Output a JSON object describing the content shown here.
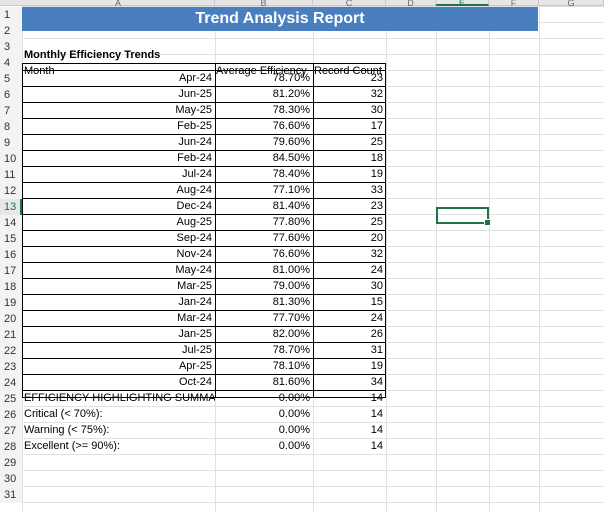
{
  "columns": [
    "A",
    "B",
    "C",
    "D",
    "E",
    "F",
    "G"
  ],
  "selected_column": "E",
  "row_numbers": [
    "1",
    "2",
    "3",
    "4",
    "5",
    "6",
    "7",
    "8",
    "9",
    "10",
    "11",
    "12",
    "13",
    "14",
    "15",
    "16",
    "17",
    "18",
    "19",
    "20",
    "21",
    "22",
    "23",
    "24",
    "25",
    "26",
    "27",
    "28",
    "29",
    "30",
    "31"
  ],
  "selected_row": "13",
  "title": "Trend Analysis Report",
  "section_title": "Monthly Efficiency Trends",
  "headers": {
    "month": "Month",
    "efficiency": "Average Efficiency",
    "count": "Record Count"
  },
  "rows": [
    {
      "month": "Apr-24",
      "efficiency": "78.70%",
      "count": "23"
    },
    {
      "month": "Jun-25",
      "efficiency": "81.20%",
      "count": "32"
    },
    {
      "month": "May-25",
      "efficiency": "78.30%",
      "count": "30"
    },
    {
      "month": "Feb-25",
      "efficiency": "76.60%",
      "count": "17"
    },
    {
      "month": "Jun-24",
      "efficiency": "79.60%",
      "count": "25"
    },
    {
      "month": "Feb-24",
      "efficiency": "84.50%",
      "count": "18"
    },
    {
      "month": "Jul-24",
      "efficiency": "78.40%",
      "count": "19"
    },
    {
      "month": "Aug-24",
      "efficiency": "77.10%",
      "count": "33"
    },
    {
      "month": "Dec-24",
      "efficiency": "81.40%",
      "count": "23"
    },
    {
      "month": "Aug-25",
      "efficiency": "77.80%",
      "count": "25"
    },
    {
      "month": "Sep-24",
      "efficiency": "77.60%",
      "count": "20"
    },
    {
      "month": "Nov-24",
      "efficiency": "76.60%",
      "count": "32"
    },
    {
      "month": "May-24",
      "efficiency": "81.00%",
      "count": "24"
    },
    {
      "month": "Mar-25",
      "efficiency": "79.00%",
      "count": "30"
    },
    {
      "month": "Jan-24",
      "efficiency": "81.30%",
      "count": "15"
    },
    {
      "month": "Mar-24",
      "efficiency": "77.70%",
      "count": "24"
    },
    {
      "month": "Jan-25",
      "efficiency": "82.00%",
      "count": "26"
    },
    {
      "month": "Jul-25",
      "efficiency": "78.70%",
      "count": "31"
    },
    {
      "month": "Apr-25",
      "efficiency": "78.10%",
      "count": "19"
    },
    {
      "month": "Oct-24",
      "efficiency": "81.60%",
      "count": "34"
    },
    {
      "month": "EFFICIENCY HIGHLIGHTING SUMMAR",
      "efficiency": "0.00%",
      "count": "14"
    },
    {
      "month": "Critical (< 70%):",
      "efficiency": "0.00%",
      "count": "14"
    },
    {
      "month": "Warning (< 75%):",
      "efficiency": "0.00%",
      "count": "14"
    },
    {
      "month": "Excellent (>= 90%):",
      "efficiency": "0.00%",
      "count": "14"
    }
  ]
}
